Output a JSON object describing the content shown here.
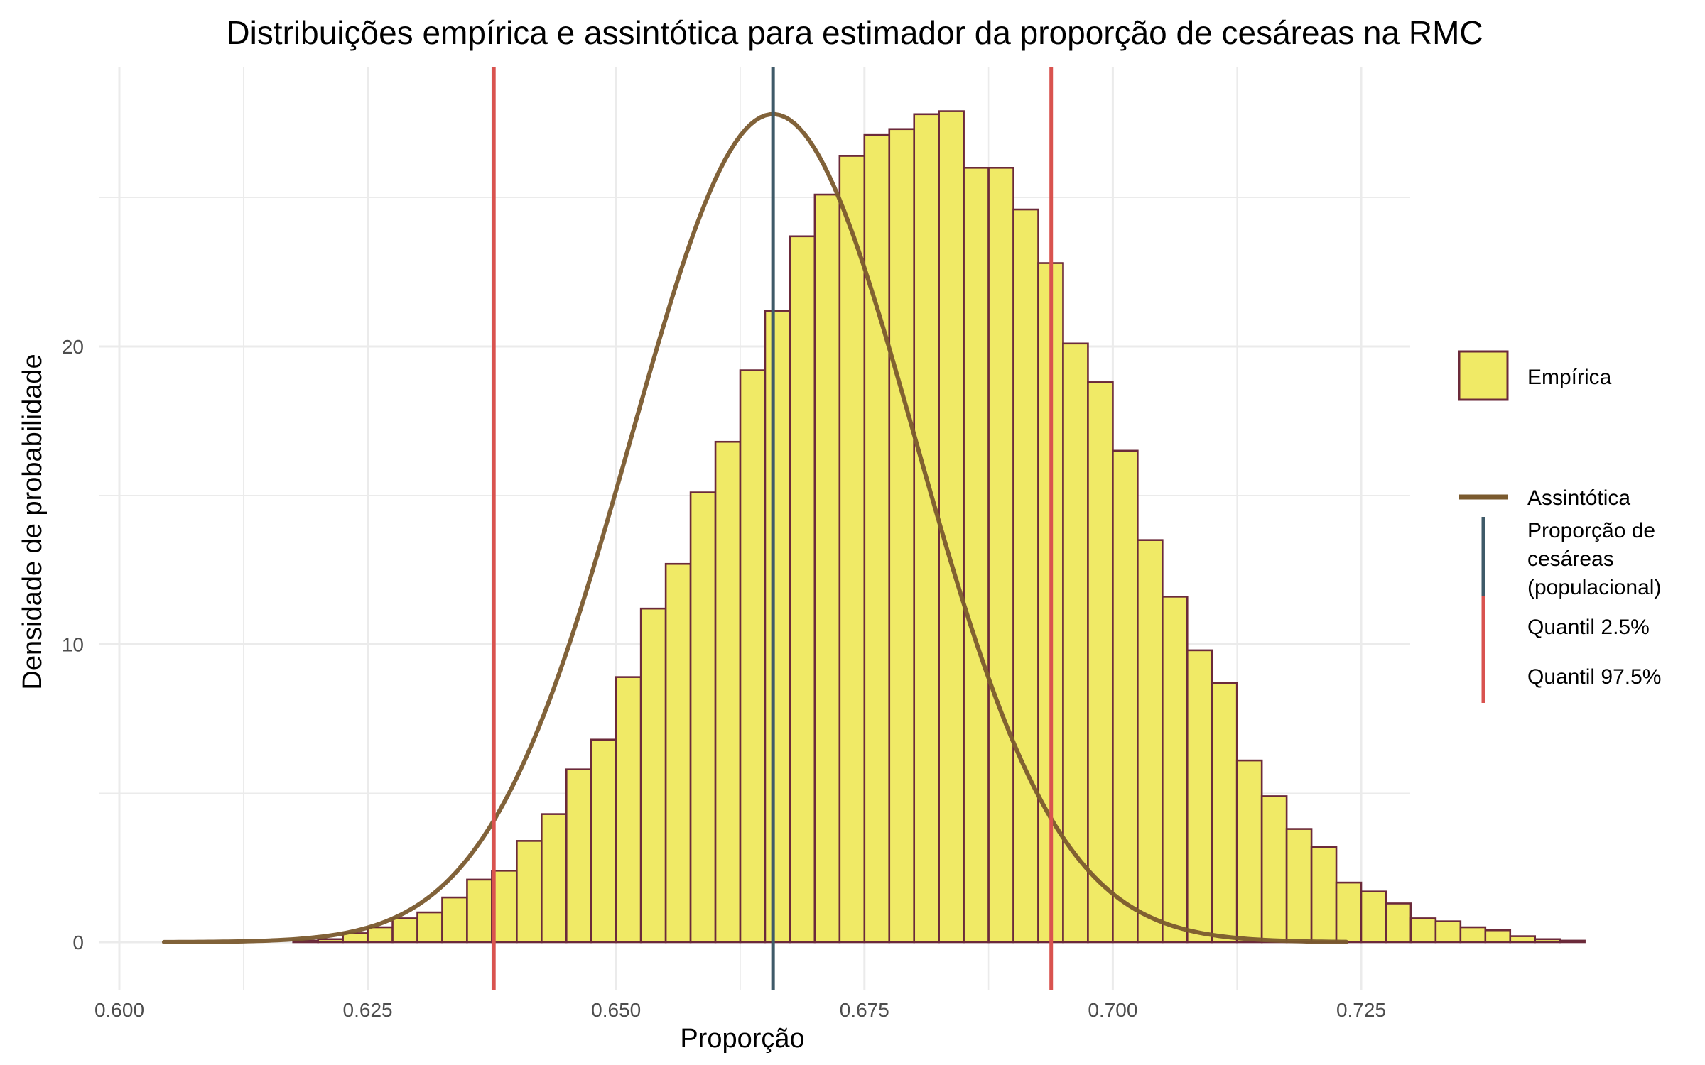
{
  "chart_data": {
    "type": "bar",
    "title": "Distribuições empírica e assintótica para estimador da proporção de cesáreas na RMC",
    "xlabel": "Proporção",
    "ylabel": "Densidade de probabilidade",
    "xlim": [
      0.6,
      0.725
    ],
    "ylim": [
      0,
      28
    ],
    "x_ticks": [
      0.6,
      0.625,
      0.65,
      0.675,
      0.7,
      0.725
    ],
    "x_tick_labels": [
      "0.600",
      "0.625",
      "0.650",
      "0.675",
      "0.700",
      "0.725"
    ],
    "y_ticks": [
      0,
      10,
      20
    ],
    "y_tick_labels": [
      "0",
      "10",
      "20"
    ],
    "grid": true,
    "legend_position": "right",
    "histogram": {
      "name": "Empírica",
      "bin_width": 0.0025,
      "bin_start": 0.6175,
      "values": [
        0.05,
        0.1,
        0.3,
        0.5,
        0.8,
        1.0,
        1.5,
        2.1,
        2.4,
        3.4,
        4.3,
        5.8,
        6.8,
        8.9,
        11.2,
        12.7,
        15.1,
        16.8,
        19.2,
        21.2,
        23.7,
        25.1,
        26.4,
        27.1,
        27.3,
        27.8,
        27.9,
        26.0,
        26.0,
        24.6,
        22.8,
        20.1,
        18.8,
        16.5,
        13.5,
        11.6,
        9.8,
        8.7,
        6.1,
        4.9,
        3.8,
        3.2,
        2.0,
        1.7,
        1.3,
        0.8,
        0.7,
        0.5,
        0.4,
        0.2,
        0.1,
        0.05
      ]
    },
    "density_curve": {
      "name": "Assintótica",
      "mean": 0.6658,
      "sd": 0.01435,
      "x_range": [
        0.6045,
        0.7235
      ]
    },
    "vertical_lines": [
      {
        "name": "Proporção de cesáreas (populacional)",
        "x": 0.6658
      },
      {
        "name": "Quantil 2.5%",
        "x": 0.6377
      },
      {
        "name": "Quantil 97.5%",
        "x": 0.6938
      }
    ],
    "colors": {
      "bar_fill": "#f0ea66",
      "bar_outline": "#6b2a3a",
      "curve": "#7a5a2e",
      "population_line": "#3f5a68",
      "quantile_line": "#d9534f",
      "grid": "#ebebeb",
      "text": "#000000",
      "tick_text": "#4d4d4d"
    },
    "legend": {
      "fill_item": "Empírica",
      "curve_item": "Assintótica",
      "population_item": [
        "Proporção de",
        "cesáreas",
        "(populacional)"
      ],
      "q025_item": "Quantil 2.5%",
      "q975_item": "Quantil 97.5%"
    }
  }
}
